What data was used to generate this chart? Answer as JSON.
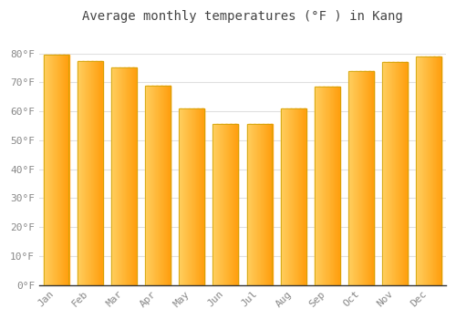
{
  "title": "Average monthly temperatures (°F ) in Kang",
  "months": [
    "Jan",
    "Feb",
    "Mar",
    "Apr",
    "May",
    "Jun",
    "Jul",
    "Aug",
    "Sep",
    "Oct",
    "Nov",
    "Dec"
  ],
  "values": [
    79.5,
    77.5,
    75.0,
    69.0,
    61.0,
    55.5,
    55.5,
    61.0,
    68.5,
    74.0,
    77.0,
    79.0
  ],
  "bar_color_left": "#FFD060",
  "bar_color_right": "#FFA010",
  "bar_border_color": "#C8A000",
  "background_color": "#ffffff",
  "grid_color": "#e0e0e0",
  "ylim": [
    0,
    88
  ],
  "yticks": [
    0,
    10,
    20,
    30,
    40,
    50,
    60,
    70,
    80
  ],
  "ytick_labels": [
    "0°F",
    "10°F",
    "20°F",
    "30°F",
    "40°F",
    "50°F",
    "60°F",
    "70°F",
    "80°F"
  ],
  "tick_font": "monospace",
  "tick_color": "#888888",
  "title_font": "monospace",
  "title_color": "#444444",
  "title_fontsize": 10,
  "tick_fontsize": 8,
  "bar_width": 0.75,
  "n_gradient_steps": 50
}
